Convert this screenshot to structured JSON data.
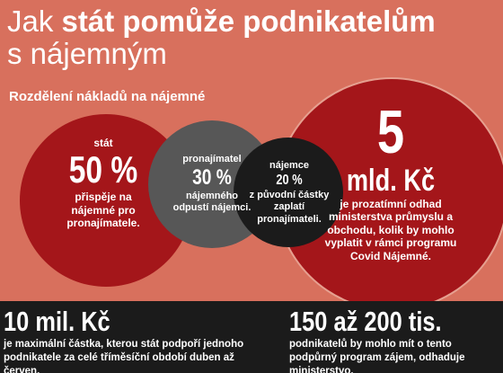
{
  "header": {
    "title_start": "Jak",
    "title_bold": "stát pomůže podnikatelům",
    "title_end": "s nájemným",
    "subtitle": "Rozdělení nákladů na nájemné"
  },
  "circles": [
    {
      "label": "stát",
      "share": "50 %",
      "text": "přispěje na nájemné pro pronajímatele."
    },
    {
      "label": "pronajímatel",
      "share": "30 %",
      "text": "nájemného odpustí nájemci."
    },
    {
      "label": "nájemce",
      "share": "20 %",
      "text": "z původní částky zaplatí pronajímateli."
    },
    {
      "label": "5",
      "share": "mld. Kč",
      "text": "je prozatímní odhad ministerstva průmyslu a obchodu, kolik by mohlo vyplatit v rámci programu Covid Nájemné."
    }
  ],
  "facts": [
    {
      "figure": "10 mil. Kč",
      "text": "je maximální částka, kterou stát podpoří jednoho podnikatele za celé tříměsíční období duben až červen."
    },
    {
      "figure": "150 až 200 tis.",
      "text": "podnikatelů by mohlo mít o tento podpůrný program zájem, odhaduje ministerstvo."
    }
  ]
}
